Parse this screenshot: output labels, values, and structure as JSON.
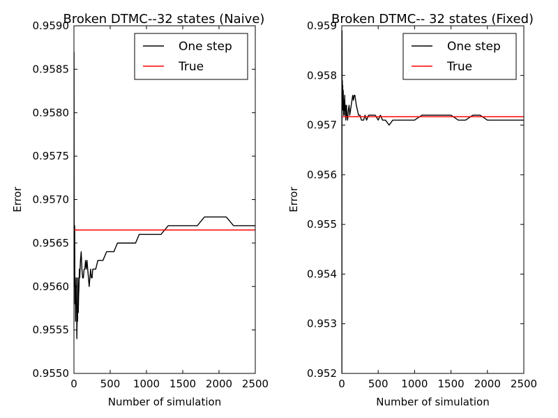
{
  "chart_data": [
    {
      "type": "line",
      "title": "Broken DTMC--32 states (Naive)",
      "xlabel": "Number of simulation",
      "ylabel": "Error",
      "xlim": [
        0,
        2500
      ],
      "ylim": [
        0.955,
        0.959
      ],
      "xticks": [
        0,
        500,
        1000,
        1500,
        2000,
        2500
      ],
      "xtick_labels": [
        "0",
        "500",
        "1000",
        "1500",
        "2000",
        "2500"
      ],
      "yticks": [
        0.955,
        0.9555,
        0.956,
        0.9565,
        0.957,
        0.9575,
        0.958,
        0.9585,
        0.959
      ],
      "ytick_labels": [
        "0.9550",
        "0.9555",
        "0.9560",
        "0.9565",
        "0.9570",
        "0.9575",
        "0.9580",
        "0.9585",
        "0.9590"
      ],
      "grid": false,
      "legend_position": "top-right",
      "series": [
        {
          "name": "One step",
          "color": "#000000",
          "x": [
            1,
            3,
            6,
            10,
            14,
            18,
            22,
            26,
            30,
            35,
            40,
            45,
            50,
            55,
            60,
            65,
            70,
            75,
            80,
            90,
            100,
            110,
            120,
            130,
            140,
            150,
            160,
            170,
            180,
            190,
            200,
            210,
            220,
            230,
            240,
            250,
            260,
            280,
            300,
            330,
            360,
            400,
            450,
            500,
            550,
            600,
            650,
            700,
            750,
            800,
            850,
            900,
            950,
            1000,
            1100,
            1200,
            1300,
            1400,
            1500,
            1600,
            1700,
            1800,
            1900,
            1950,
            2000,
            2050,
            2100,
            2200,
            2300,
            2400,
            2450,
            2500
          ],
          "y": [
            0.9587,
            0.9568,
            0.956,
            0.9567,
            0.9558,
            0.9561,
            0.9556,
            0.956,
            0.9558,
            0.9561,
            0.9554,
            0.9557,
            0.9556,
            0.9561,
            0.9557,
            0.9559,
            0.956,
            0.9562,
            0.9561,
            0.9563,
            0.9564,
            0.9562,
            0.9561,
            0.9561,
            0.9562,
            0.9562,
            0.9563,
            0.9562,
            0.9563,
            0.9562,
            0.9561,
            0.956,
            0.9561,
            0.9562,
            0.9561,
            0.9561,
            0.9562,
            0.9562,
            0.9562,
            0.9563,
            0.9563,
            0.9563,
            0.9564,
            0.9564,
            0.9564,
            0.9565,
            0.9565,
            0.9565,
            0.9565,
            0.9565,
            0.9565,
            0.9566,
            0.9566,
            0.9566,
            0.9566,
            0.9566,
            0.9567,
            0.9567,
            0.9567,
            0.9567,
            0.9567,
            0.9568,
            0.9568,
            0.9568,
            0.9568,
            0.9568,
            0.9568,
            0.9567,
            0.9567,
            0.9567,
            0.9567,
            0.9567
          ]
        },
        {
          "name": "True",
          "color": "#ff0000",
          "x": [
            0,
            2500
          ],
          "y": [
            0.95665,
            0.95665
          ]
        }
      ]
    },
    {
      "type": "line",
      "title": "Broken DTMC-- 32 states (Fixed)",
      "xlabel": "Number of simulation",
      "ylabel": "Error",
      "xlim": [
        0,
        2500
      ],
      "ylim": [
        0.952,
        0.959
      ],
      "xticks": [
        0,
        500,
        1000,
        1500,
        2000,
        2500
      ],
      "xtick_labels": [
        "0",
        "500",
        "1000",
        "1500",
        "2000",
        "2500"
      ],
      "yticks": [
        0.952,
        0.953,
        0.954,
        0.955,
        0.956,
        0.957,
        0.958,
        0.959
      ],
      "ytick_labels": [
        "0.952",
        "0.953",
        "0.954",
        "0.955",
        "0.956",
        "0.957",
        "0.958",
        "0.959"
      ],
      "grid": false,
      "legend_position": "top-right",
      "series": [
        {
          "name": "One step",
          "color": "#000000",
          "x": [
            1,
            3,
            5,
            8,
            10,
            13,
            16,
            20,
            25,
            30,
            35,
            40,
            45,
            50,
            55,
            60,
            65,
            70,
            80,
            90,
            100,
            110,
            120,
            130,
            140,
            150,
            160,
            170,
            180,
            190,
            200,
            215,
            230,
            250,
            270,
            290,
            300,
            320,
            340,
            370,
            400,
            430,
            460,
            500,
            530,
            560,
            600,
            650,
            700,
            750,
            800,
            900,
            1000,
            1100,
            1200,
            1300,
            1400,
            1500,
            1600,
            1700,
            1800,
            1900,
            2000,
            2100,
            2200,
            2300,
            2400,
            2500
          ],
          "y": [
            0.952,
            0.9589,
            0.9576,
            0.9579,
            0.9575,
            0.9578,
            0.9573,
            0.9577,
            0.9572,
            0.9575,
            0.9572,
            0.9576,
            0.9573,
            0.9574,
            0.9571,
            0.9573,
            0.9574,
            0.9572,
            0.9571,
            0.9573,
            0.9574,
            0.9572,
            0.9573,
            0.9574,
            0.9575,
            0.9576,
            0.9575,
            0.9576,
            0.9576,
            0.9575,
            0.9574,
            0.9573,
            0.9572,
            0.9572,
            0.9571,
            0.9571,
            0.9571,
            0.9572,
            0.9571,
            0.9572,
            0.9572,
            0.9572,
            0.9572,
            0.9571,
            0.9572,
            0.9571,
            0.9571,
            0.957,
            0.9571,
            0.9571,
            0.9571,
            0.9571,
            0.9571,
            0.9572,
            0.9572,
            0.9572,
            0.9572,
            0.9572,
            0.9571,
            0.9571,
            0.9572,
            0.9572,
            0.9571,
            0.9571,
            0.9571,
            0.9571,
            0.9571,
            0.9571
          ]
        },
        {
          "name": "True",
          "color": "#ff0000",
          "x": [
            0,
            2500
          ],
          "y": [
            0.95717,
            0.95717
          ]
        }
      ]
    }
  ]
}
